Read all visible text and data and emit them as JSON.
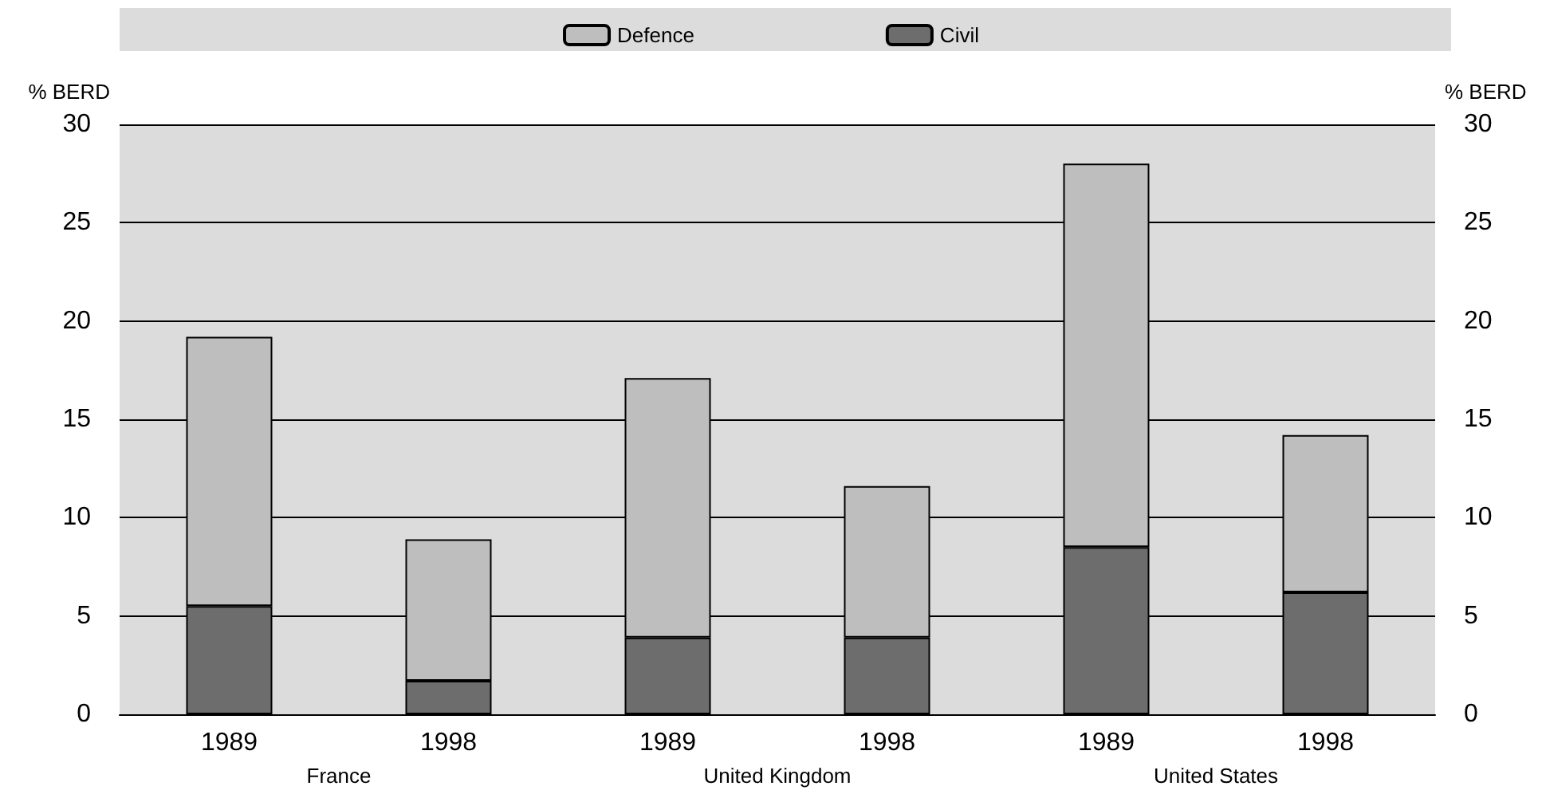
{
  "chart_data": {
    "type": "bar",
    "stacked": true,
    "categories": [
      "1989",
      "1998",
      "1989",
      "1998",
      "1989",
      "1998"
    ],
    "series": [
      {
        "name": "Civil",
        "color": "#6d6d6e",
        "values": [
          5.5,
          1.7,
          3.9,
          3.9,
          8.5,
          6.2
        ]
      },
      {
        "name": "Defence",
        "color": "#bebebe",
        "values": [
          13.7,
          7.2,
          13.2,
          7.7,
          19.5,
          8.0
        ]
      }
    ],
    "annotations": [
      "France",
      "United Kingdom",
      "United States"
    ],
    "ylabel": "% BERD",
    "y2label": "% BERD",
    "ylim": [
      0,
      30
    ],
    "yticks": [
      0,
      5,
      10,
      15,
      20,
      25,
      30
    ],
    "y2lim": [
      0,
      30
    ],
    "y2ticks": [
      0,
      5,
      10,
      15,
      20,
      25,
      30
    ],
    "grid": "y",
    "legend": "top"
  }
}
